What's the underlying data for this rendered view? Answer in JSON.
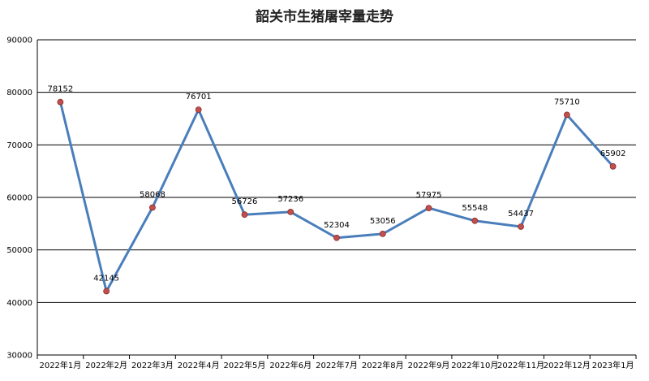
{
  "chart_data": {
    "type": "line",
    "title": "韶关市生猪屠宰量走势",
    "xlabel": "",
    "ylabel": "",
    "categories": [
      "2022年1月",
      "2022年2月",
      "2022年3月",
      "2022年4月",
      "2022年5月",
      "2022年6月",
      "2022年7月",
      "2022年8月",
      "2022年9月",
      "2022年10月",
      "2022年11月",
      "2022年12月",
      "2023年1月"
    ],
    "series": [
      {
        "values": [
          78152,
          42145,
          58068,
          76701,
          56726,
          57236,
          52304,
          53056,
          57975,
          55548,
          54437,
          75710,
          65902
        ]
      }
    ],
    "ylim": [
      30000,
      90000
    ],
    "yticks": [
      30000,
      40000,
      50000,
      60000,
      70000,
      80000,
      90000
    ],
    "grid": true,
    "legend": "none",
    "data_labels": [
      "78152",
      "42145",
      "58068",
      "76701",
      "56726",
      "57236",
      "52304",
      "53056",
      "57975",
      "55548",
      "54437",
      "75710",
      "65902"
    ],
    "colors": {
      "line": "#4a7ebb",
      "marker": "#c0504d",
      "grid": "#000000"
    }
  }
}
